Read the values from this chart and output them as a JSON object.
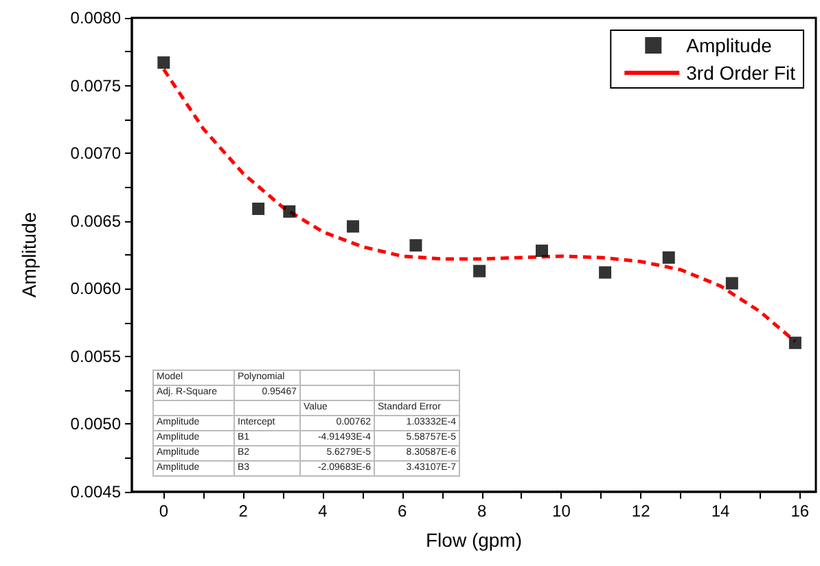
{
  "chart_data": {
    "type": "scatter",
    "xlabel": "Flow (gpm)",
    "ylabel": "Amplitude",
    "xlim": [
      -0.8,
      16.4
    ],
    "xticks": [
      0,
      {
        "value": 1,
        "label": null
      },
      2,
      {
        "value": 3,
        "label": null
      },
      4,
      {
        "value": 5,
        "label": null
      },
      6,
      {
        "value": 7,
        "label": null
      },
      8,
      {
        "value": 9,
        "label": null
      },
      10,
      {
        "value": 11,
        "label": null
      },
      12,
      {
        "value": 13,
        "label": null
      },
      14,
      {
        "value": 15,
        "label": null
      },
      16
    ],
    "ylim": [
      0.0045,
      0.008
    ],
    "yticks": [
      {
        "value": 0.0045,
        "label": "0.0045"
      },
      {
        "value": 0.00475,
        "label": null
      },
      {
        "value": 0.005,
        "label": "0.0050"
      },
      {
        "value": 0.00525,
        "label": null
      },
      {
        "value": 0.0055,
        "label": "0.0055"
      },
      {
        "value": 0.00575,
        "label": null
      },
      {
        "value": 0.006,
        "label": "0.0060"
      },
      {
        "value": 0.00625,
        "label": null
      },
      {
        "value": 0.0065,
        "label": "0.0065"
      },
      {
        "value": 0.00675,
        "label": null
      },
      {
        "value": 0.007,
        "label": "0.0070"
      },
      {
        "value": 0.00725,
        "label": null
      },
      {
        "value": 0.0075,
        "label": "0.0075"
      },
      {
        "value": 0.00775,
        "label": null
      },
      {
        "value": 0.008,
        "label": "0.0080"
      }
    ],
    "grid": false,
    "legend": "top right",
    "series": [
      {
        "name": "Amplitude",
        "color": "#000000",
        "marker": "square",
        "x": [
          0,
          2.38,
          3.16,
          4.76,
          6.34,
          7.94,
          9.51,
          11.1,
          12.7,
          14.29,
          15.88
        ],
        "values": [
          0.00767,
          0.00659,
          0.00657,
          0.00646,
          0.00632,
          0.00613,
          0.00628,
          0.00612,
          0.00623,
          0.00604,
          0.0056
        ]
      },
      {
        "name": "3rd Order Fit",
        "type": "line",
        "color": "#ff0000",
        "marker": "none",
        "line_style": "dashed",
        "x": [
          0,
          1,
          2,
          3,
          4,
          5,
          6,
          7,
          8,
          9,
          10,
          11,
          12,
          13,
          14,
          15,
          15.88
        ],
        "values": [
          0.00762,
          0.00718,
          0.00685,
          0.0066,
          0.00642,
          0.00631,
          0.00624,
          0.00622,
          0.00622,
          0.00623,
          0.00624,
          0.00623,
          0.0062,
          0.00614,
          0.00602,
          0.00583,
          0.00561
        ]
      }
    ],
    "annotations": [
      "Model",
      "Polynomial",
      "Adj. R-Square",
      "0.95467",
      "Value",
      "Standard Error",
      "Amplitude",
      "Intercept",
      "0.00762",
      "1.03332E-4",
      "Amplitude",
      "B1",
      "-4.91493E-4",
      "5.58757E-5",
      "Amplitude",
      "B2",
      "5.6279E-5",
      "8.30587E-6",
      "Amplitude",
      "B3",
      "-2.09683E-6",
      "3.43107E-7"
    ]
  }
}
